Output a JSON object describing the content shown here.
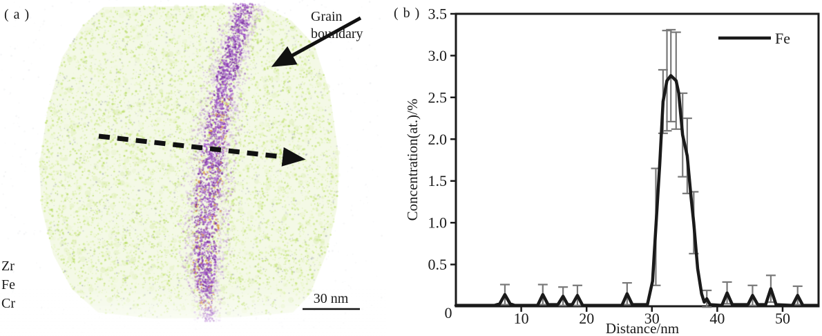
{
  "panel_a": {
    "label": "( a )",
    "grain_boundary_label": [
      "Grain",
      "boundary"
    ],
    "element_labels": [
      "Zr",
      "Fe",
      "Cr"
    ],
    "scale_bar_label": "30 nm",
    "colors": {
      "matrix_fill": "#f2f8e2",
      "matrix_greens": [
        "#cbe786",
        "#c0e170",
        "#d6ee9d",
        "#b5d95f",
        "#dff3b0"
      ],
      "speck_gray": "#9aa1a9",
      "boundary_purples": [
        "#9a4fc0",
        "#8a3cb2",
        "#a75fcc",
        "#7b34a0",
        "#b273d4"
      ],
      "boundary_fringe": "#c9a2e2",
      "speck_orange": "#dd9a3e",
      "ink": "#111111"
    }
  },
  "panel_b": {
    "label": "( b )"
  },
  "chart_data": {
    "type": "line",
    "title": "",
    "xlabel": "Distance/nm",
    "ylabel": "Concentration(at.)/%",
    "xlim": [
      0,
      55.5
    ],
    "ylim": [
      0,
      3.5
    ],
    "grid": false,
    "box": true,
    "x_ticks": [
      {
        "v": 0,
        "label": "0"
      },
      {
        "v": 10,
        "label": "10"
      },
      {
        "v": 20,
        "label": "20"
      },
      {
        "v": 30,
        "label": "30"
      },
      {
        "v": 40,
        "label": "40"
      },
      {
        "v": 50,
        "label": "50"
      }
    ],
    "y_ticks": [
      {
        "v": 0.5,
        "label": "0.5"
      },
      {
        "v": 1.0,
        "label": "1.0"
      },
      {
        "v": 1.5,
        "label": "1.5"
      },
      {
        "v": 2.0,
        "label": "2.0"
      },
      {
        "v": 2.5,
        "label": "2.5"
      },
      {
        "v": 3.0,
        "label": "3.0"
      },
      {
        "v": 3.5,
        "label": "3.5"
      }
    ],
    "legend": {
      "position": "top-right",
      "entries": [
        {
          "label": "Fe",
          "color": "#1a1a1a"
        }
      ]
    },
    "series": [
      {
        "name": "Fe",
        "color": "#1a1a1a",
        "error_color": "#787878",
        "points": [
          [
            0,
            0.01
          ],
          [
            5.9,
            0.01
          ],
          [
            6.7,
            0.03
          ],
          [
            7.5,
            0.14
          ],
          [
            8.3,
            0.03
          ],
          [
            9.0,
            0.01
          ],
          [
            12.5,
            0.01
          ],
          [
            13.3,
            0.14
          ],
          [
            14.1,
            0.02
          ],
          [
            15.6,
            0.02
          ],
          [
            16.4,
            0.12
          ],
          [
            17.1,
            0.02
          ],
          [
            17.8,
            0.02
          ],
          [
            18.6,
            0.13
          ],
          [
            19.4,
            0.01
          ],
          [
            25.4,
            0.01
          ],
          [
            26.2,
            0.15
          ],
          [
            27.0,
            0.02
          ],
          [
            29.3,
            0.02
          ],
          [
            30.1,
            0.3
          ],
          [
            30.6,
            0.95
          ],
          [
            31.2,
            1.7
          ],
          [
            31.7,
            2.45
          ],
          [
            32.3,
            2.7
          ],
          [
            32.9,
            2.76
          ],
          [
            33.7,
            2.7
          ],
          [
            34.1,
            2.55
          ],
          [
            34.7,
            2.05
          ],
          [
            35.4,
            1.8
          ],
          [
            36.0,
            1.3
          ],
          [
            36.4,
            1.0
          ],
          [
            37.0,
            0.45
          ],
          [
            37.6,
            0.15
          ],
          [
            38.0,
            0.05
          ],
          [
            38.4,
            0.09
          ],
          [
            38.9,
            0.02
          ],
          [
            40.7,
            0.01
          ],
          [
            41.5,
            0.16
          ],
          [
            42.3,
            0.02
          ],
          [
            44.7,
            0.02
          ],
          [
            45.4,
            0.13
          ],
          [
            46.2,
            0.02
          ],
          [
            47.4,
            0.02
          ],
          [
            48.2,
            0.21
          ],
          [
            49.0,
            0.02
          ],
          [
            51.5,
            0.01
          ],
          [
            52.3,
            0.13
          ],
          [
            53.1,
            0.01
          ],
          [
            55.4,
            0.01
          ]
        ],
        "error_bars": [
          {
            "x": 7.5,
            "y": 0.14,
            "err": 0.12
          },
          {
            "x": 13.3,
            "y": 0.14,
            "err": 0.12
          },
          {
            "x": 16.4,
            "y": 0.12,
            "err": 0.11
          },
          {
            "x": 18.6,
            "y": 0.13,
            "err": 0.12
          },
          {
            "x": 26.2,
            "y": 0.15,
            "err": 0.13
          },
          {
            "x": 30.6,
            "y": 0.95,
            "err": 0.7
          },
          {
            "x": 31.7,
            "y": 2.45,
            "err": 0.38
          },
          {
            "x": 32.3,
            "y": 2.7,
            "err": 0.6
          },
          {
            "x": 32.9,
            "y": 2.76,
            "err": 0.55
          },
          {
            "x": 33.7,
            "y": 2.7,
            "err": 0.58
          },
          {
            "x": 34.7,
            "y": 2.05,
            "err": 0.5
          },
          {
            "x": 35.4,
            "y": 1.8,
            "err": 0.45
          },
          {
            "x": 36.4,
            "y": 1.0,
            "err": 0.37
          },
          {
            "x": 38.4,
            "y": 0.09,
            "err": 0.1
          },
          {
            "x": 41.5,
            "y": 0.16,
            "err": 0.13
          },
          {
            "x": 45.4,
            "y": 0.13,
            "err": 0.12
          },
          {
            "x": 48.2,
            "y": 0.21,
            "err": 0.16
          },
          {
            "x": 52.3,
            "y": 0.13,
            "err": 0.11
          }
        ]
      }
    ]
  }
}
